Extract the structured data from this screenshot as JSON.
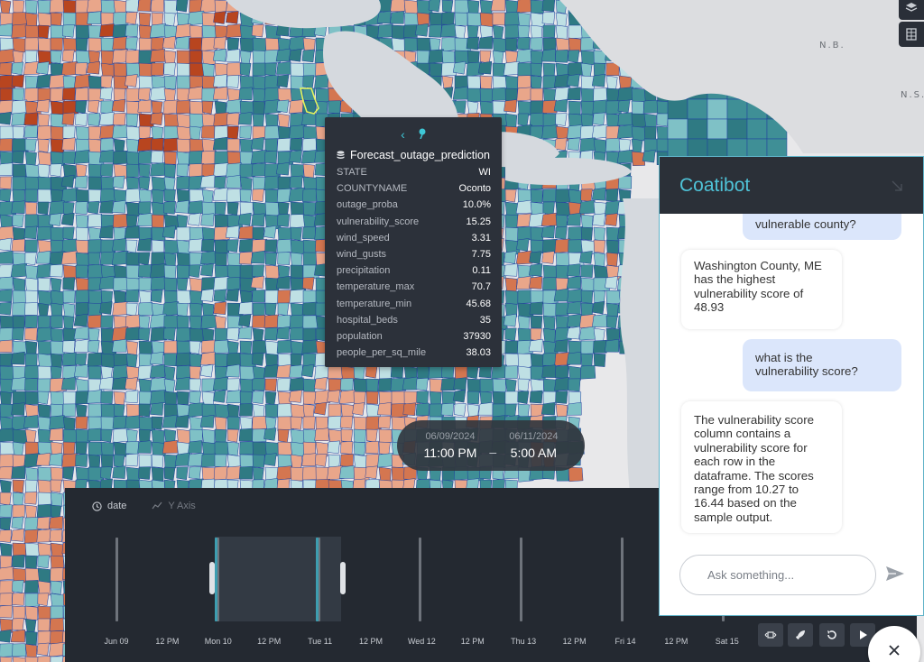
{
  "map": {
    "labels": [
      "N.B.",
      "N.S."
    ],
    "colors": {
      "teal": "#3f8f96",
      "teal_dark": "#2f7a83",
      "teal_light": "#7fc1c6",
      "pale": "#bfe0e4",
      "salmon": "#e9a68a",
      "orange": "#d47650",
      "rust": "#b8451f",
      "border": "#1f3f9e",
      "land_bg": "#e8e8ea",
      "lake": "#d5d9de"
    }
  },
  "map_controls": {
    "layer_icon": "layers-icon",
    "table_icon": "table-icon"
  },
  "tooltip": {
    "title": "Forecast_outage_prediction",
    "rows": [
      {
        "key": "STATE",
        "value": "WI"
      },
      {
        "key": "COUNTYNAME",
        "value": "Oconto"
      },
      {
        "key": "outage_proba",
        "value": "10.0%"
      },
      {
        "key": "vulnerability_score",
        "value": "15.25"
      },
      {
        "key": "wind_speed",
        "value": "3.31"
      },
      {
        "key": "wind_gusts",
        "value": "7.75"
      },
      {
        "key": "precipitation",
        "value": "0.11"
      },
      {
        "key": "temperature_max",
        "value": "70.7"
      },
      {
        "key": "temperature_min",
        "value": "45.68"
      },
      {
        "key": "hospital_beds",
        "value": "35"
      },
      {
        "key": "population",
        "value": "37930"
      },
      {
        "key": "people_per_sq_mile",
        "value": "38.03"
      }
    ]
  },
  "time_range": {
    "start_date": "06/09/2024",
    "start_time": "11:00 PM",
    "separator": "–",
    "end_date": "06/11/2024",
    "end_time": "5:00 AM"
  },
  "timeline": {
    "field_label": "date",
    "y_axis_label": "Y Axis",
    "tick_labels": [
      "Jun 09",
      "12 PM",
      "Mon 10",
      "12 PM",
      "Tue 11",
      "12 PM",
      "Wed 12",
      "12 PM",
      "Thu 13",
      "12 PM",
      "Fri 14",
      "12 PM",
      "Sat 15"
    ],
    "buttons": [
      "fit-icon",
      "rocket-icon",
      "reset-icon",
      "play-icon"
    ]
  },
  "chat": {
    "title": "Coatibot",
    "messages": [
      {
        "role": "user",
        "lines": [
          "vulnerable county?"
        ]
      },
      {
        "role": "bot",
        "lines": [
          "Washington County, ME",
          "has the highest",
          "vulnerability score of",
          "48.93"
        ]
      },
      {
        "role": "user",
        "lines": [
          "what is the",
          "vulnerability score?"
        ]
      },
      {
        "role": "bot",
        "lines": [
          "The vulnerability score",
          "column contains a",
          "vulnerability score for",
          "each row in the",
          "dataframe. The scores",
          "range from 10.27 to",
          "16.44 based on the",
          "sample output."
        ]
      }
    ],
    "input_placeholder": "Ask something..."
  }
}
